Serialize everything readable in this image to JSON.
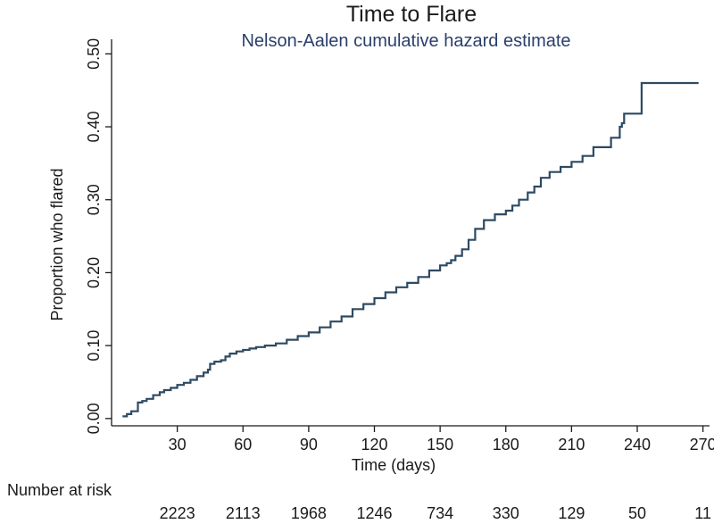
{
  "chart_data": {
    "type": "line",
    "title": "Time to Flare",
    "subtitle": "Nelson-Aalen cumulative hazard estimate",
    "xlabel": "Time (days)",
    "ylabel": "Proportion who flared",
    "xlim": [
      0,
      273
    ],
    "ylim": [
      -0.01,
      0.52
    ],
    "x_ticks": [
      30,
      60,
      90,
      120,
      150,
      180,
      210,
      240,
      270
    ],
    "y_ticks": [
      "0.00",
      "0.10",
      "0.20",
      "0.30",
      "0.40",
      "0.50"
    ],
    "grid": false,
    "legend": "none",
    "line_color": "#2e4a62",
    "step": true,
    "series": [
      {
        "x": [
          5,
          7,
          9,
          12,
          14,
          16,
          19,
          22,
          24,
          27,
          30,
          33,
          36,
          39,
          42,
          44,
          45,
          47,
          50,
          52,
          54,
          57,
          60,
          63,
          66,
          70,
          75,
          80,
          85,
          90,
          95,
          100,
          105,
          110,
          115,
          120,
          125,
          130,
          135,
          140,
          145,
          150,
          153,
          155,
          157,
          160,
          163,
          166,
          170,
          175,
          180,
          183,
          186,
          190,
          193,
          196,
          200,
          205,
          210,
          215,
          220,
          224,
          228,
          232,
          233,
          234,
          236,
          242,
          268
        ],
        "y": [
          0.003,
          0.006,
          0.01,
          0.022,
          0.024,
          0.027,
          0.032,
          0.036,
          0.039,
          0.042,
          0.046,
          0.049,
          0.053,
          0.058,
          0.063,
          0.067,
          0.075,
          0.078,
          0.08,
          0.085,
          0.089,
          0.092,
          0.094,
          0.096,
          0.098,
          0.1,
          0.103,
          0.108,
          0.113,
          0.118,
          0.125,
          0.133,
          0.14,
          0.15,
          0.157,
          0.165,
          0.173,
          0.18,
          0.186,
          0.194,
          0.203,
          0.21,
          0.213,
          0.217,
          0.223,
          0.232,
          0.245,
          0.26,
          0.272,
          0.28,
          0.285,
          0.292,
          0.3,
          0.31,
          0.318,
          0.33,
          0.338,
          0.345,
          0.352,
          0.36,
          0.372,
          0.372,
          0.385,
          0.4,
          0.405,
          0.418,
          0.418,
          0.46,
          0.46
        ]
      }
    ],
    "number_at_risk": {
      "label": "Number at risk",
      "values": [
        "2223",
        "2113",
        "1968",
        "1246",
        "734",
        "330",
        "129",
        "50",
        "11"
      ]
    }
  }
}
